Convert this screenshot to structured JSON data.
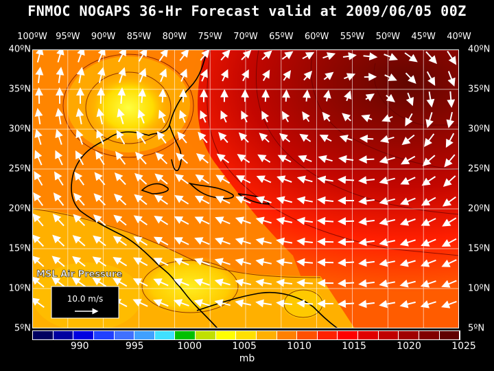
{
  "title": "FNMOC NOGAPS 36-Hr Forecast valid at 2009/06/05 00Z",
  "lon_labels": [
    "100ºW",
    "95ºW",
    "90ºW",
    "85ºW",
    "80ºW",
    "75ºW",
    "70ºW",
    "65ºW",
    "60ºW",
    "55ºW",
    "50ºW",
    "45ºW",
    "40ºW"
  ],
  "lat_labels": [
    "40ºN",
    "35ºN",
    "30ºN",
    "25ºN",
    "20ºN",
    "15ºN",
    "10ºN",
    "5ºN"
  ],
  "field_label": "MSL Air Pressure",
  "vector_legend": "10.0 m/s",
  "colorbar": {
    "colors": [
      "#000060",
      "#0000a0",
      "#0000e0",
      "#2040ff",
      "#4070ff",
      "#40a0ff",
      "#40e0ff",
      "#00c000",
      "#c0e000",
      "#ffff00",
      "#ffe000",
      "#ffb000",
      "#ff8000",
      "#ff5000",
      "#ff2000",
      "#ff0000",
      "#e00000",
      "#c00000",
      "#a00000",
      "#800000",
      "#600000"
    ],
    "labels": [
      "990",
      "995",
      "1000",
      "1005",
      "1010",
      "1015",
      "1020",
      "1025"
    ]
  },
  "unit": "mb"
}
